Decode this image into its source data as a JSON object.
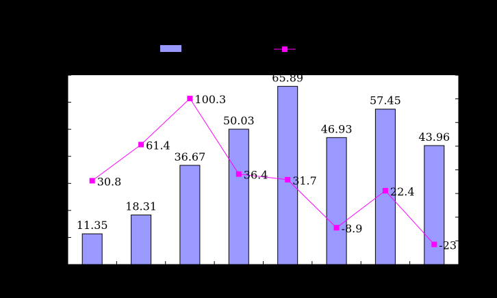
{
  "colors": {
    "background": "#000000",
    "plot_area": "#ffffff",
    "bar_fill": "#9999ff",
    "bar_stroke": "#000000",
    "line": "#ff00ff",
    "axis": "#000000"
  },
  "chart_data": {
    "type": "bar",
    "title": "",
    "xlabel": "",
    "ylabel": "",
    "categories": [
      "",
      "",
      "",
      "",
      "",
      "",
      "",
      ""
    ],
    "ylim_left": [
      0,
      70
    ],
    "ylim_right": [
      -40,
      120
    ],
    "legend_position": "top",
    "grid": false,
    "series": [
      {
        "type": "bar",
        "axis": "left",
        "color": "#9999ff",
        "values": [
          11.35,
          18.31,
          36.67,
          50.03,
          65.89,
          46.93,
          57.45,
          43.96
        ],
        "labels": [
          "11.35",
          "18.31",
          "36.67",
          "50.03",
          "65.89",
          "46.93",
          "57.45",
          "43.96"
        ]
      },
      {
        "type": "line",
        "axis": "right",
        "color": "#ff00ff",
        "marker": "square",
        "values": [
          30.8,
          61.4,
          100.3,
          36.4,
          31.7,
          -8.9,
          22.4,
          -23
        ],
        "labels": [
          "30.8",
          "61.4",
          "100.3",
          "36.4",
          "31.7",
          "-8.9",
          "22.4",
          "-23"
        ]
      }
    ]
  }
}
